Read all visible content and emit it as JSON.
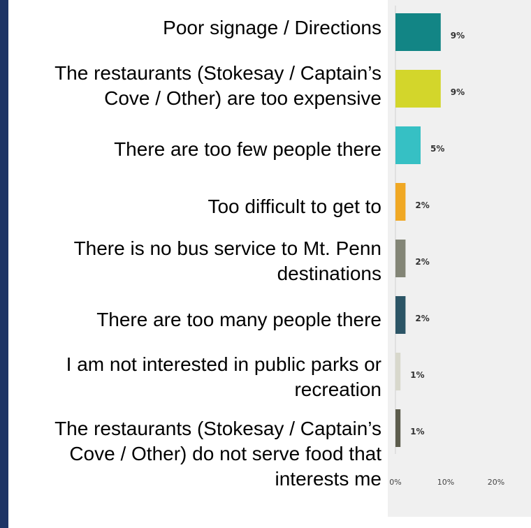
{
  "chart_data": {
    "type": "bar",
    "orientation": "horizontal",
    "categories": [
      "Poor signage / Directions",
      "The restaurants (Stokesay / Captain’s\nCove / Other) are too expensive",
      "There are too few people there",
      "Too difficult to get to",
      "There is no bus service to Mt. Penn\ndestinations",
      "There are too many people there",
      "I am not interested in public parks or\nrecreation",
      "The restaurants (Stokesay / Captain’s\nCove / Other) do not serve food that\ninterests me"
    ],
    "values": [
      9,
      9,
      5,
      2,
      2,
      2,
      1,
      1
    ],
    "value_labels": [
      "9%",
      "9%",
      "5%",
      "2%",
      "2%",
      "2%",
      "1%",
      "1%"
    ],
    "colors": [
      "#128585",
      "#d3d62b",
      "#36c0c4",
      "#f0a824",
      "#838576",
      "#2c5566",
      "#d8d8cc",
      "#5c5c4c"
    ],
    "xticks": [
      "0%",
      "10%",
      "20%"
    ],
    "xlim": [
      0,
      20
    ],
    "grid": false
  },
  "theme": {
    "frame_color": "#1e3566",
    "plot_background": "#f0f0f0"
  }
}
